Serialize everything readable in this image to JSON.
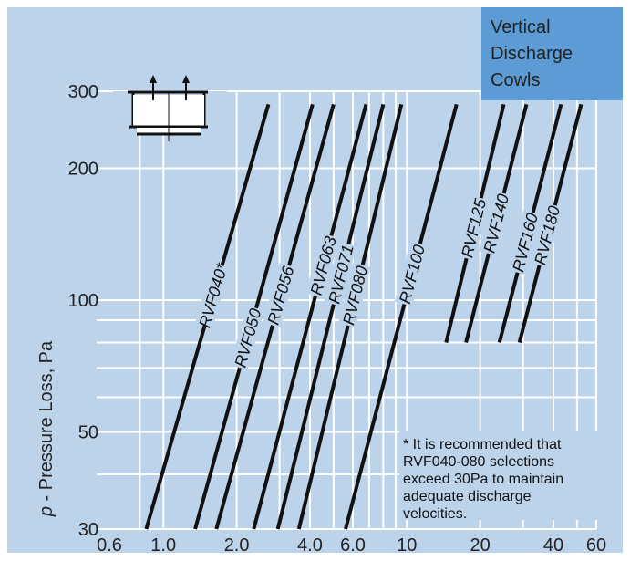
{
  "colors": {
    "background": "#bcd3ea",
    "grid": "#ffffff",
    "curve": "#111111",
    "title_box": "#5d9bd5"
  },
  "icon": "cowl-icon",
  "chart_data": {
    "type": "line",
    "title": [
      "Vertical",
      "Discharge",
      "Cowls"
    ],
    "xlabel": "",
    "ylabel": "p - Pressure Loss, Pa",
    "x_scale": "log",
    "y_scale": "log",
    "xlim": [
      0.6,
      60
    ],
    "ylim": [
      30,
      300
    ],
    "x_ticks": [
      0.6,
      1.0,
      2.0,
      4.0,
      6.0,
      10,
      20,
      40,
      60
    ],
    "x_tick_labels": [
      "0.6",
      "1.0",
      "2.0",
      "4.0",
      "6.0",
      "10",
      "20",
      "40",
      "60"
    ],
    "y_ticks": [
      30,
      50,
      100,
      200,
      300
    ],
    "y_tick_labels": [
      "30",
      "50",
      "100",
      "200",
      "300"
    ],
    "series": [
      {
        "name": "RVF040*",
        "x": [
          0.85,
          2.7
        ],
        "y": [
          30,
          280
        ]
      },
      {
        "name": "RVF050",
        "x": [
          1.35,
          4.1
        ],
        "y": [
          30,
          280
        ]
      },
      {
        "name": "RVF056",
        "x": [
          1.65,
          5.0
        ],
        "y": [
          30,
          280
        ]
      },
      {
        "name": "RVF063",
        "x": [
          2.35,
          6.8
        ],
        "y": [
          30,
          280
        ]
      },
      {
        "name": "RVF071",
        "x": [
          2.95,
          8.0
        ],
        "y": [
          30,
          280
        ]
      },
      {
        "name": "RVF080",
        "x": [
          3.6,
          9.5
        ],
        "y": [
          30,
          280
        ]
      },
      {
        "name": "RVF100",
        "x": [
          5.6,
          16
        ],
        "y": [
          30,
          280
        ]
      },
      {
        "name": "RVF125",
        "x": [
          14.5,
          25
        ],
        "y": [
          80,
          280
        ]
      },
      {
        "name": "RVF140",
        "x": [
          17.5,
          31
        ],
        "y": [
          80,
          280
        ]
      },
      {
        "name": "RVF160",
        "x": [
          24,
          43
        ],
        "y": [
          80,
          280
        ]
      },
      {
        "name": "RVF180",
        "x": [
          29,
          52
        ],
        "y": [
          80,
          280
        ]
      }
    ],
    "annotation": [
      "* It is recommended that",
      "RVF040-080 selections",
      "exceed 30Pa to maintain",
      "adequate discharge",
      "velocities."
    ]
  }
}
